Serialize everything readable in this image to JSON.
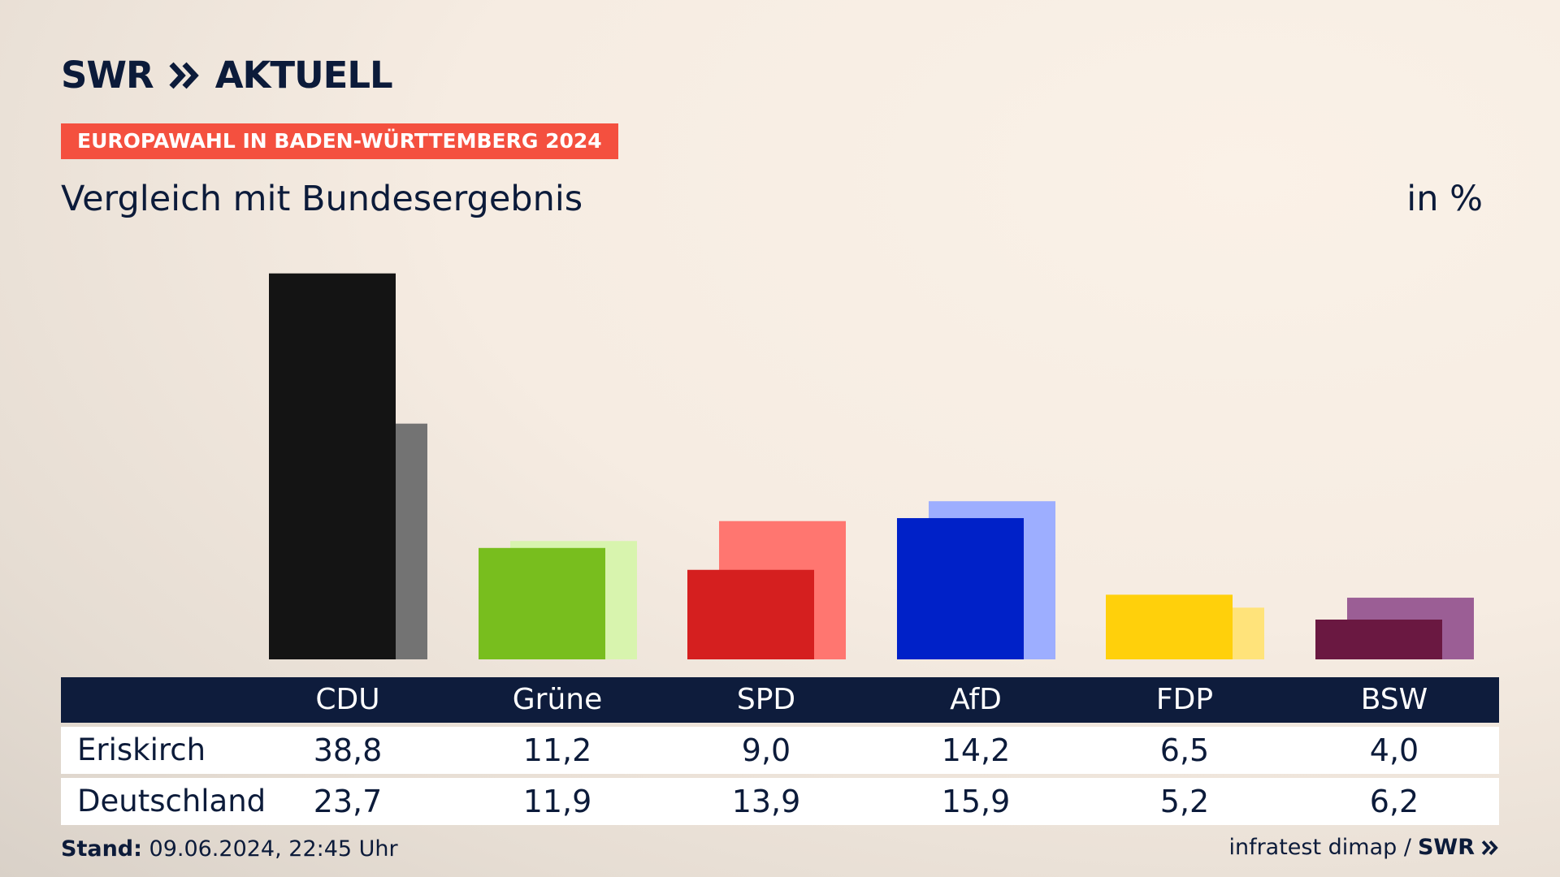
{
  "header": {
    "brand": "SWR",
    "brand_suffix": "AKTUELL",
    "kicker": "EUROPAWAHL IN BADEN-WÜRTTEMBERG 2024",
    "subtitle": "Vergleich mit Bundesergebnis",
    "unit": "in %"
  },
  "table": {
    "rows": [
      {
        "label": "Eriskirch",
        "values": [
          "38,8",
          "11,2",
          "9,0",
          "14,2",
          "6,5",
          "4,0"
        ]
      },
      {
        "label": "Deutschland",
        "values": [
          "23,7",
          "11,9",
          "13,9",
          "15,9",
          "5,2",
          "6,2"
        ]
      }
    ]
  },
  "footer": {
    "stand_label": "Stand:",
    "stand_value": "09.06.2024, 22:45 Uhr",
    "source": "infratest dimap /",
    "source_logo": "SWR"
  },
  "chart_data": {
    "type": "bar",
    "title": "Vergleich mit Bundesergebnis",
    "ylabel": "in %",
    "categories": [
      "CDU",
      "Grüne",
      "SPD",
      "AfD",
      "FDP",
      "BSW"
    ],
    "series": [
      {
        "name": "Eriskirch",
        "values": [
          38.8,
          11.2,
          9.0,
          14.2,
          6.5,
          4.0
        ]
      },
      {
        "name": "Deutschland",
        "values": [
          23.7,
          11.9,
          13.9,
          15.9,
          5.2,
          6.2
        ]
      }
    ],
    "colors_primary": [
      "#141414",
      "#78be1e",
      "#d51f1f",
      "#0021c8",
      "#ffd00b",
      "#6a1841"
    ],
    "colors_secondary": [
      "#737373",
      "#d8f4ae",
      "#ff7670",
      "#9daeff",
      "#ffe37a",
      "#9b5e95"
    ],
    "legend": "none",
    "grid": false
  }
}
